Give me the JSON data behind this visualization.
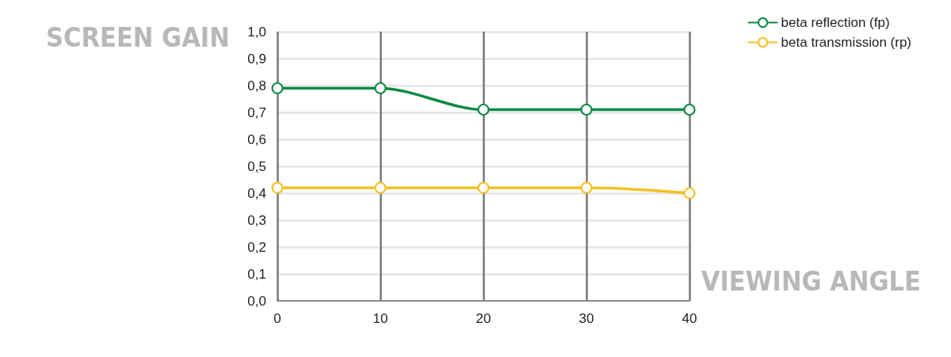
{
  "chart_data": {
    "type": "line",
    "xlabel": "VIEWING ANGLE",
    "ylabel": "SCREEN GAIN",
    "x": [
      0,
      10,
      20,
      30,
      40
    ],
    "series": [
      {
        "name": "beta reflection (fp)",
        "color": "#0e8a45",
        "values": [
          0.79,
          0.79,
          0.71,
          0.71,
          0.71
        ]
      },
      {
        "name": "beta transmission (rp)",
        "color": "#f5c023",
        "values": [
          0.42,
          0.42,
          0.42,
          0.42,
          0.4
        ]
      }
    ],
    "xlim": [
      0,
      40
    ],
    "xticks": [
      0,
      10,
      20,
      30,
      40
    ],
    "ylim": [
      0,
      1
    ],
    "yticks": [
      {
        "value": 0,
        "label": "0,0"
      },
      {
        "value": 0.1,
        "label": "0,1"
      },
      {
        "value": 0.2,
        "label": "0,2"
      },
      {
        "value": 0.3,
        "label": "0,3"
      },
      {
        "value": 0.4,
        "label": "0,4"
      },
      {
        "value": 0.5,
        "label": "0,5"
      },
      {
        "value": 0.6,
        "label": "0,6"
      },
      {
        "value": 0.7,
        "label": "0,7"
      },
      {
        "value": 0.8,
        "label": "0,8"
      },
      {
        "value": 0.9,
        "label": "0,9"
      },
      {
        "value": 1,
        "label": "1,0"
      }
    ],
    "grid": true,
    "legend": "top right",
    "marker": "circle",
    "line_style": "solid"
  }
}
